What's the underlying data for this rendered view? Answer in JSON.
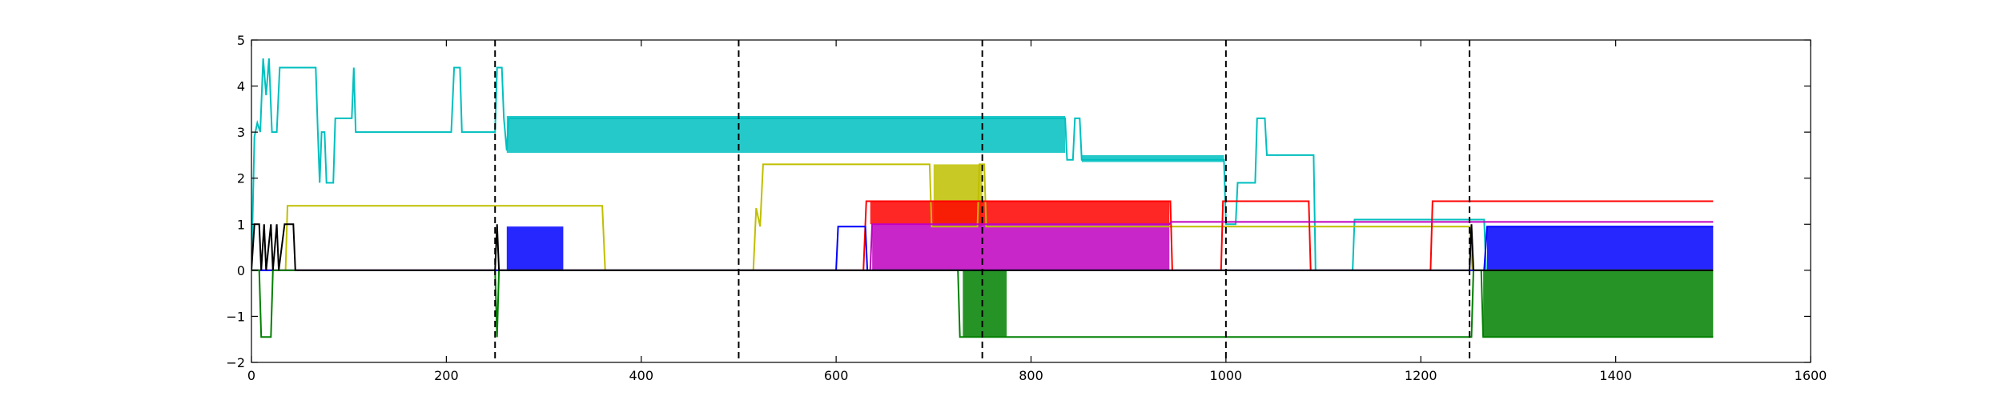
{
  "chart_data": {
    "type": "line",
    "title": "",
    "xlabel": "",
    "ylabel": "",
    "xlim": [
      0,
      1600
    ],
    "ylim": [
      -2,
      5
    ],
    "x_ticks": [
      0,
      200,
      400,
      600,
      800,
      1000,
      1200,
      1400,
      1600
    ],
    "y_ticks": [
      -2,
      -1,
      0,
      1,
      2,
      3,
      4,
      5
    ],
    "x_tick_labels": [
      "0",
      "200",
      "400",
      "600",
      "800",
      "1000",
      "1200",
      "1400",
      "1600"
    ],
    "y_tick_labels": [
      "−2",
      "−1",
      "0",
      "1",
      "2",
      "3",
      "4",
      "5"
    ],
    "grid": false,
    "legend": "none",
    "vlines": [
      250,
      500,
      750,
      1000,
      1250
    ],
    "vline_style": "dashed",
    "series": [
      {
        "color": "#00bfbf",
        "points": [
          [
            0,
            0
          ],
          [
            3,
            2.9
          ],
          [
            6,
            3.2
          ],
          [
            9,
            3.0
          ],
          [
            12,
            4.6
          ],
          [
            15,
            3.8
          ],
          [
            18,
            4.6
          ],
          [
            21,
            3.0
          ],
          [
            26,
            3.0
          ],
          [
            29,
            4.4
          ],
          [
            66,
            4.4
          ],
          [
            68,
            3.1
          ],
          [
            70,
            1.9
          ],
          [
            72,
            3.0
          ],
          [
            75,
            3.0
          ],
          [
            77,
            1.9
          ],
          [
            84,
            1.9
          ],
          [
            86,
            3.3
          ],
          [
            103,
            3.3
          ],
          [
            105,
            4.4
          ],
          [
            107,
            3.0
          ],
          [
            205,
            3.0
          ],
          [
            208,
            4.4
          ],
          [
            214,
            4.4
          ],
          [
            216,
            3.0
          ],
          [
            250,
            3.0
          ],
          [
            252,
            4.4
          ],
          [
            257,
            4.4
          ],
          [
            259,
            3.3
          ],
          [
            262,
            2.6
          ],
          [
            264,
            3.3
          ],
          [
            835,
            3.3
          ],
          [
            837,
            2.4
          ],
          [
            843,
            2.4
          ],
          [
            845,
            3.3
          ],
          [
            850,
            3.3
          ],
          [
            852,
            2.4
          ],
          [
            998,
            2.4
          ],
          [
            1000,
            1.0
          ],
          [
            1010,
            1.0
          ],
          [
            1012,
            1.9
          ],
          [
            1030,
            1.9
          ],
          [
            1032,
            3.3
          ],
          [
            1040,
            3.3
          ],
          [
            1042,
            2.5
          ],
          [
            1090,
            2.5
          ],
          [
            1092,
            0
          ],
          [
            1130,
            0
          ],
          [
            1132,
            1.1
          ],
          [
            1265,
            1.1
          ],
          [
            1267,
            0
          ],
          [
            1500,
            0
          ]
        ],
        "bands": [
          {
            "x": [
              262,
              835
            ],
            "low": 2.55,
            "high": 3.35
          },
          {
            "x": [
              852,
              998
            ],
            "low": 2.35,
            "high": 2.5
          }
        ]
      },
      {
        "color": "#bfbf00",
        "points": [
          [
            0,
            0
          ],
          [
            35,
            0
          ],
          [
            37,
            1.4
          ],
          [
            360,
            1.4
          ],
          [
            363,
            0
          ],
          [
            515,
            0
          ],
          [
            518,
            1.35
          ],
          [
            522,
            0.95
          ],
          [
            525,
            2.3
          ],
          [
            696,
            2.3
          ],
          [
            698,
            0.95
          ],
          [
            745,
            0.95
          ],
          [
            747,
            2.3
          ],
          [
            752,
            2.3
          ],
          [
            754,
            0.95
          ],
          [
            1250,
            0.95
          ],
          [
            1253,
            0
          ],
          [
            1500,
            0
          ]
        ],
        "bands": [
          {
            "x": [
              700,
              750
            ],
            "low": 0.95,
            "high": 2.3
          }
        ]
      },
      {
        "color": "#ff0000",
        "points": [
          [
            0,
            0
          ],
          [
            628,
            0
          ],
          [
            631,
            1.5
          ],
          [
            943,
            1.5
          ],
          [
            945,
            0
          ],
          [
            995,
            0
          ],
          [
            997,
            1.5
          ],
          [
            1085,
            1.5
          ],
          [
            1087,
            0
          ],
          [
            1210,
            0
          ],
          [
            1212,
            1.5
          ],
          [
            1500,
            1.5
          ]
        ],
        "bands": [
          {
            "x": [
              635,
              942
            ],
            "low": 1.0,
            "high": 1.5
          }
        ]
      },
      {
        "color": "#bf00bf",
        "points": [
          [
            0,
            0
          ],
          [
            635,
            0
          ],
          [
            637,
            1.0
          ],
          [
            942,
            1.0
          ],
          [
            944,
            1.05
          ],
          [
            1500,
            1.05
          ]
        ],
        "bands": [
          {
            "x": [
              637,
              942
            ],
            "low": 0,
            "high": 1.0
          }
        ]
      },
      {
        "color": "#0000ff",
        "points": [
          [
            0,
            0
          ],
          [
            600,
            0
          ],
          [
            602,
            0.95
          ],
          [
            630,
            0.95
          ],
          [
            632,
            0
          ],
          [
            1265,
            0
          ],
          [
            1268,
            0.95
          ],
          [
            1500,
            0.95
          ]
        ],
        "bands": [
          {
            "x": [
              262,
              320
            ],
            "low": 0,
            "high": 0.95
          },
          {
            "x": [
              1268,
              1500
            ],
            "low": 0,
            "high": 0.95
          }
        ]
      },
      {
        "color": "#008000",
        "points": [
          [
            0,
            0
          ],
          [
            8,
            0
          ],
          [
            10,
            -1.45
          ],
          [
            20,
            -1.45
          ],
          [
            22,
            0
          ],
          [
            250,
            0
          ],
          [
            252,
            -1.45
          ],
          [
            254,
            0
          ],
          [
            725,
            0
          ],
          [
            727,
            -1.45
          ],
          [
            1252,
            -1.45
          ],
          [
            1254,
            0
          ],
          [
            1262,
            0
          ],
          [
            1264,
            -1.45
          ],
          [
            1500,
            -1.45
          ]
        ],
        "bands": [
          {
            "x": [
              730,
              775
            ],
            "low": -1.45,
            "high": 0
          },
          {
            "x": [
              1264,
              1500
            ],
            "low": -1.45,
            "high": 0
          }
        ]
      },
      {
        "color": "#000000",
        "points": [
          [
            0,
            0
          ],
          [
            3,
            1.0
          ],
          [
            8,
            1.0
          ],
          [
            10,
            0
          ],
          [
            13,
            1.0
          ],
          [
            15,
            0
          ],
          [
            20,
            1.0
          ],
          [
            22,
            0
          ],
          [
            26,
            1.0
          ],
          [
            28,
            0
          ],
          [
            34,
            1.0
          ],
          [
            43,
            1.0
          ],
          [
            45,
            0
          ],
          [
            250,
            0
          ],
          [
            252,
            1.0
          ],
          [
            254,
            0
          ],
          [
            1250,
            0
          ],
          [
            1252,
            1.0
          ],
          [
            1254,
            0
          ],
          [
            1500,
            0
          ]
        ]
      }
    ]
  }
}
